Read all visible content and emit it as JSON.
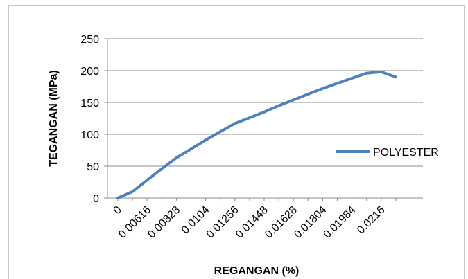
{
  "chart_data": {
    "type": "line",
    "title": "",
    "xlabel": "REGANGAN (%)",
    "ylabel": "TEGANGAN (MPa)",
    "ylim": [
      0,
      250
    ],
    "yticks": [
      "0",
      "50",
      "100",
      "150",
      "200",
      "250"
    ],
    "categories": [
      "0",
      "",
      "0.00616",
      "",
      "0.00828",
      "",
      "0.0104",
      "",
      "0.01256",
      "",
      "0.01448",
      "",
      "0.01628",
      "",
      "0.01804",
      "",
      "0.01984",
      "",
      "0.0216",
      ""
    ],
    "series": [
      {
        "name": "POLYESTER",
        "color": "#4f81bd",
        "values": [
          0,
          10,
          28,
          46,
          63,
          77,
          91,
          104,
          117,
          126,
          135,
          145,
          154,
          163,
          172,
          180,
          188,
          196,
          198,
          190
        ]
      }
    ],
    "grid": "horizontal",
    "legend": "right"
  }
}
